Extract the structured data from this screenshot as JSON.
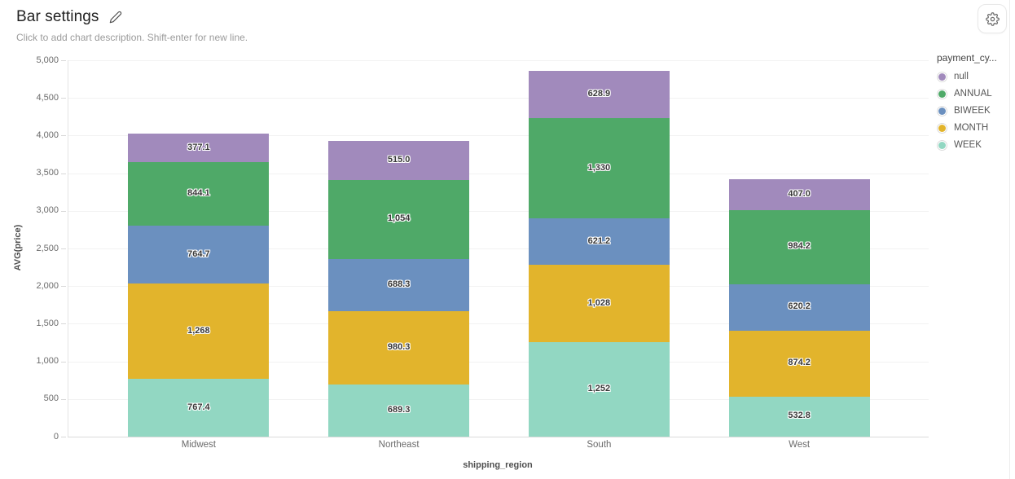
{
  "header": {
    "title": "Bar settings",
    "subtitle": "Click to add chart description. Shift-enter for new line."
  },
  "chart_data": {
    "type": "bar",
    "stacked": true,
    "xlabel": "shipping_region",
    "ylabel": "AVG(price)",
    "ylim": [
      0,
      5000
    ],
    "ytick_step": 500,
    "yticks": [
      "0",
      "500",
      "1,000",
      "1,500",
      "2,000",
      "2,500",
      "3,000",
      "3,500",
      "4,000",
      "4,500",
      "5,000"
    ],
    "grid": "horizontal",
    "categories": [
      "Midwest",
      "Northeast",
      "South",
      "West"
    ],
    "legend": {
      "title": "payment_cy...",
      "position": "right",
      "order_top_to_bottom": [
        "null",
        "ANNUAL",
        "BIWEEK",
        "MONTH",
        "WEEK"
      ]
    },
    "series": [
      {
        "name": "WEEK",
        "color": "#92d7c2",
        "values": [
          767.4,
          689.3,
          1252,
          532.8
        ],
        "labels": [
          "767.4",
          "689.3",
          "1,252",
          "532.8"
        ]
      },
      {
        "name": "MONTH",
        "color": "#e2b42c",
        "values": [
          1268,
          980.3,
          1028,
          874.2
        ],
        "labels": [
          "1,268",
          "980.3",
          "1,028",
          "874.2"
        ]
      },
      {
        "name": "BIWEEK",
        "color": "#6b90bf",
        "values": [
          764.7,
          688.3,
          621.2,
          620.2
        ],
        "labels": [
          "764.7",
          "688.3",
          "621.2",
          "620.2"
        ]
      },
      {
        "name": "ANNUAL",
        "color": "#4fa968",
        "values": [
          844.1,
          1054,
          1330,
          984.2
        ],
        "labels": [
          "844.1",
          "1,054",
          "1,330",
          "984.2"
        ]
      },
      {
        "name": "null",
        "color": "#a18abc",
        "values": [
          377.1,
          515.0,
          628.9,
          407.0
        ],
        "labels": [
          "377.1",
          "515.0",
          "628.9",
          "407.0"
        ]
      }
    ]
  }
}
